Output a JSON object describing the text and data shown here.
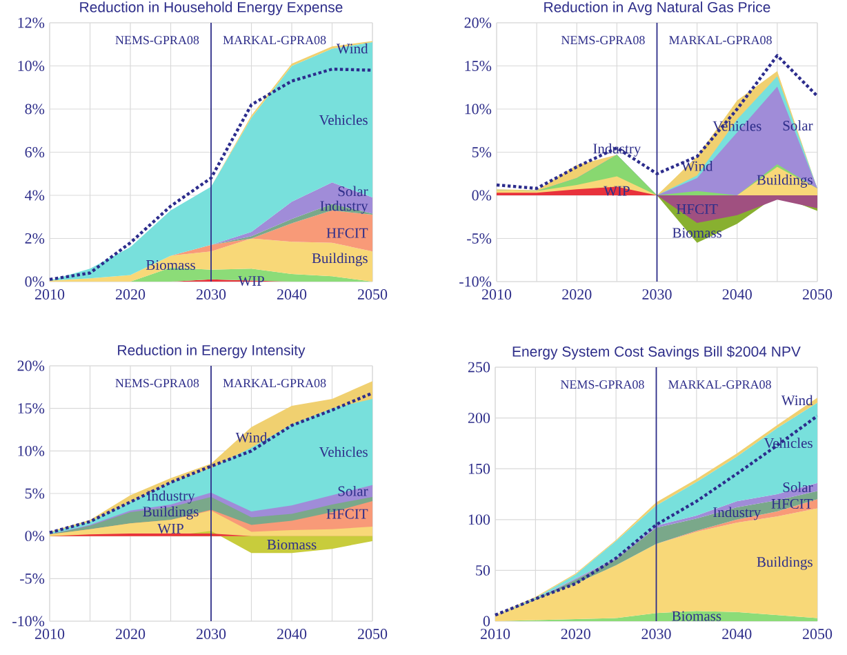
{
  "chart_data": [
    {
      "type": "area",
      "title": "Reduction in Household Energy Expense",
      "stacked": true,
      "grid": true,
      "x": [
        2010,
        2015,
        2020,
        2025,
        2030,
        2035,
        2040,
        2045,
        2050
      ],
      "xlim": [
        2010,
        2050
      ],
      "xticks": [
        2010,
        {
          "value": 2015,
          "label": null
        },
        2020,
        {
          "value": 2025,
          "label": null
        },
        2030,
        {
          "value": 2035,
          "label": null
        },
        2040,
        {
          "value": 2045,
          "label": null
        },
        2050
      ],
      "ylim": [
        0,
        12
      ],
      "yticks": [
        {
          "value": 0,
          "label": "0%"
        },
        {
          "value": 2,
          "label": "2%"
        },
        {
          "value": 4,
          "label": "4%"
        },
        {
          "value": 6,
          "label": "6%"
        },
        {
          "value": 8,
          "label": "8%"
        },
        {
          "value": 10,
          "label": "10%"
        },
        {
          "value": 12,
          "label": "12%"
        }
      ],
      "ref_lines": [
        {
          "axis": "x",
          "value": 2030,
          "color": "#2e2e8a"
        }
      ],
      "annotations": [
        "NEMS-GPRA08",
        "MARKAL-GPRA08"
      ],
      "series": [
        {
          "name": "WIP",
          "color": "#e8323c",
          "values": [
            0,
            0,
            0,
            0,
            0.1,
            0.05,
            0,
            0,
            0
          ]
        },
        {
          "name": "Biomass",
          "color": "#8cdc78",
          "values": [
            0,
            0,
            0,
            0.65,
            0.45,
            0.55,
            0.35,
            0.25,
            0
          ]
        },
        {
          "name": "Buildings",
          "color": "#f8d878",
          "values": [
            0.05,
            0.15,
            0.3,
            0.55,
            0.85,
            1.4,
            1.5,
            1.55,
            1.4
          ]
        },
        {
          "name": "HFCIT",
          "color": "#f89a78",
          "values": [
            0,
            0,
            0,
            0,
            0.3,
            0,
            0.85,
            1.5,
            1.7
          ]
        },
        {
          "name": "Industry",
          "color": "#7aa88a",
          "values": [
            0,
            0,
            0,
            0,
            0,
            0.1,
            0.2,
            0.3,
            0.05
          ]
        },
        {
          "name": "Solar",
          "color": "#a08cd8",
          "values": [
            0,
            0,
            0,
            0,
            0,
            0.2,
            0.8,
            1.0,
            0.75
          ]
        },
        {
          "name": "Vehicles",
          "color": "#78e0dc",
          "values": [
            0,
            0.45,
            1.3,
            2.1,
            2.7,
            5.3,
            6.3,
            6.2,
            7.2
          ]
        },
        {
          "name": "Wind",
          "color": "#f0d070",
          "values": [
            0,
            0,
            0,
            0,
            0,
            0.1,
            0.1,
            0.1,
            0.05
          ]
        },
        {
          "type": "line",
          "color": "#2c2c8c",
          "line_style": "dotted",
          "values": [
            0.1,
            0.4,
            1.8,
            3.5,
            4.8,
            8.2,
            9.3,
            9.85,
            9.8
          ]
        }
      ]
    },
    {
      "type": "area",
      "title": "Reduction in Avg Natural Gas Price",
      "grid": true,
      "x": [
        2010,
        2015,
        2020,
        2025,
        2030,
        2035,
        2040,
        2045,
        2050
      ],
      "xlim": [
        2010,
        2050
      ],
      "xticks": [
        2010,
        {
          "value": 2015,
          "label": null
        },
        2020,
        {
          "value": 2025,
          "label": null
        },
        2030,
        {
          "value": 2035,
          "label": null
        },
        2040,
        {
          "value": 2045,
          "label": null
        },
        2050
      ],
      "ylim": [
        -10,
        20
      ],
      "yticks": [
        {
          "value": -10,
          "label": "-10%"
        },
        {
          "value": -5,
          "label": "-5%"
        },
        {
          "value": 0,
          "label": "0%"
        },
        {
          "value": 5,
          "label": "5%"
        },
        {
          "value": 10,
          "label": "10%"
        },
        {
          "value": 15,
          "label": "15%"
        },
        {
          "value": 20,
          "label": "20%"
        }
      ],
      "ref_lines": [
        {
          "axis": "x",
          "value": 2030,
          "color": "#2e2e8a"
        }
      ],
      "annotations": [
        "NEMS-GPRA08",
        "MARKAL-GPRA08"
      ],
      "series": [
        {
          "name": "WIP",
          "color": "#e8323c",
          "values": [
            0.3,
            0.3,
            0.7,
            1.0,
            0,
            0,
            0,
            0,
            0
          ]
        },
        {
          "name": "HFCIT",
          "color": "#a05080",
          "values": [
            0,
            0,
            0,
            0,
            0,
            -3.2,
            -2.3,
            -0.5,
            -1.5
          ]
        },
        {
          "name": "Biomass",
          "color": "#88b030",
          "values": [
            0,
            0,
            0,
            0,
            0,
            -5.5,
            -3.3,
            0,
            -1.8
          ]
        },
        {
          "name": "Buildings",
          "color": "#f8d878",
          "values": [
            0.6,
            0.5,
            1.2,
            2.2,
            0,
            0,
            0,
            3.3,
            0.8
          ]
        },
        {
          "name": "Industry",
          "color": "#88d870",
          "values": [
            0.6,
            0.5,
            2.0,
            4.7,
            0,
            0.5,
            0,
            3.6,
            0.8
          ]
        },
        {
          "name": "Solar",
          "color": "#a08cd8",
          "values": [
            0.6,
            0.5,
            2.0,
            4.7,
            0,
            2.0,
            7.3,
            12.6,
            0.8
          ]
        },
        {
          "name": "Vehicles",
          "color": "#78e0dc",
          "values": [
            0.6,
            0.5,
            2.0,
            4.7,
            0,
            2.3,
            8.8,
            13.8,
            0.8
          ]
        },
        {
          "name": "Wind",
          "color": "#f0d070",
          "values": [
            0.7,
            0.6,
            3.5,
            4.7,
            0,
            4.5,
            11.0,
            14.4,
            0.8
          ]
        },
        {
          "type": "line",
          "color": "#2c2c8c",
          "line_style": "dotted",
          "values": [
            1.2,
            0.8,
            3.3,
            5.5,
            2.5,
            4.5,
            10.0,
            16.2,
            11.5
          ]
        }
      ]
    },
    {
      "type": "area",
      "title": "Reduction in Energy Intensity",
      "grid": true,
      "x": [
        2010,
        2015,
        2020,
        2025,
        2030,
        2035,
        2040,
        2045,
        2050
      ],
      "xlim": [
        2010,
        2050
      ],
      "xticks": [
        2010,
        {
          "value": 2015,
          "label": null
        },
        2020,
        {
          "value": 2025,
          "label": null
        },
        2030,
        {
          "value": 2035,
          "label": null
        },
        2040,
        {
          "value": 2045,
          "label": null
        },
        2050
      ],
      "ylim": [
        -10,
        20
      ],
      "yticks": [
        {
          "value": -10,
          "label": "-10%"
        },
        {
          "value": -5,
          "label": "-5%"
        },
        {
          "value": 0,
          "label": "0%"
        },
        {
          "value": 5,
          "label": "5%"
        },
        {
          "value": 10,
          "label": "10%"
        },
        {
          "value": 15,
          "label": "15%"
        },
        {
          "value": 20,
          "label": "20%"
        }
      ],
      "ref_lines": [
        {
          "axis": "x",
          "value": 2030,
          "color": "#2e2e8a"
        }
      ],
      "annotations": [
        "NEMS-GPRA08",
        "MARKAL-GPRA08"
      ],
      "series": [
        {
          "name": "WIP",
          "color": "#e8323c",
          "values": [
            0,
            0.2,
            0.3,
            0.3,
            0.3,
            0,
            0,
            0,
            0
          ]
        },
        {
          "name": "Biomass",
          "color": "#c8cc3c",
          "values": [
            0,
            0,
            0,
            0,
            0.6,
            -2.0,
            -2.0,
            -1.5,
            -0.6
          ]
        },
        {
          "name": "Buildings",
          "color": "#f8d878",
          "values": [
            0.2,
            0.8,
            1.5,
            1.9,
            3.0,
            0.5,
            0.7,
            0.8,
            1.1
          ]
        },
        {
          "name": "HFCIT",
          "color": "#f89a78",
          "values": [
            0.2,
            0.8,
            1.5,
            1.9,
            3.1,
            1.3,
            1.8,
            2.8,
            4.1
          ]
        },
        {
          "name": "Industry",
          "color": "#7aa88a",
          "values": [
            0.2,
            1.2,
            2.8,
            3.4,
            4.6,
            2.2,
            2.6,
            3.7,
            4.6
          ]
        },
        {
          "name": "Solar",
          "color": "#a08cd8",
          "values": [
            0.2,
            1.3,
            3.0,
            3.7,
            5.1,
            2.9,
            3.6,
            4.8,
            6.0
          ]
        },
        {
          "name": "Vehicles",
          "color": "#78e0dc",
          "values": [
            0.4,
            1.7,
            4.0,
            6.3,
            8.0,
            10.4,
            13.1,
            15.0,
            16.1
          ]
        },
        {
          "name": "Wind",
          "color": "#f0d070",
          "values": [
            0.5,
            1.9,
            4.8,
            6.8,
            8.5,
            12.8,
            15.3,
            16.1,
            18.2
          ]
        },
        {
          "type": "line",
          "color": "#2c2c8c",
          "line_style": "dotted",
          "values": [
            0.4,
            1.7,
            4.0,
            6.3,
            8.2,
            10.0,
            13.0,
            14.8,
            16.8
          ]
        }
      ]
    },
    {
      "type": "area",
      "title": "Energy System Cost Savings Bill $2004 NPV",
      "stacked": true,
      "grid": true,
      "x": [
        2010,
        2015,
        2020,
        2025,
        2030,
        2035,
        2040,
        2045,
        2050
      ],
      "xlim": [
        2010,
        2050
      ],
      "xticks": [
        2010,
        {
          "value": 2015,
          "label": null
        },
        2020,
        {
          "value": 2025,
          "label": null
        },
        2030,
        {
          "value": 2035,
          "label": null
        },
        2040,
        {
          "value": 2045,
          "label": null
        },
        2050
      ],
      "ylim": [
        0,
        250
      ],
      "yticks": [
        0,
        50,
        100,
        150,
        200,
        250
      ],
      "ref_lines": [
        {
          "axis": "x",
          "value": 2030,
          "color": "#2e2e8a"
        }
      ],
      "annotations": [
        "NEMS-GPRA08",
        "MARKAL-GPRA08"
      ],
      "series": [
        {
          "name": "Biomass",
          "color": "#8cdc78",
          "values": [
            0,
            1,
            2,
            3,
            8,
            10,
            9,
            6,
            3
          ]
        },
        {
          "name": "Buildings",
          "color": "#f8d878",
          "values": [
            5,
            20,
            35,
            52,
            68,
            78,
            88,
            97,
            108
          ]
        },
        {
          "name": "HFCIT",
          "color": "#f89a78",
          "values": [
            0,
            0,
            0,
            0,
            0,
            1,
            3,
            5,
            9
          ]
        },
        {
          "name": "Industry",
          "color": "#7aa88a",
          "values": [
            0,
            1,
            4,
            6,
            16,
            12,
            12,
            11,
            8
          ]
        },
        {
          "name": "Solar",
          "color": "#a08cd8",
          "values": [
            0,
            0,
            1,
            1,
            2,
            3,
            6,
            6,
            8
          ]
        },
        {
          "name": "Vehicles",
          "color": "#78e0dc",
          "values": [
            0,
            1,
            4,
            17,
            20,
            33,
            44,
            65,
            79
          ]
        },
        {
          "name": "Wind",
          "color": "#f0d070",
          "values": [
            1,
            1,
            1,
            1,
            3,
            3,
            3,
            3,
            5
          ]
        },
        {
          "type": "line",
          "color": "#2c2c8c",
          "line_style": "dotted",
          "values": [
            6,
            22,
            37,
            62,
            95,
            118,
            145,
            173,
            202
          ]
        }
      ]
    }
  ]
}
